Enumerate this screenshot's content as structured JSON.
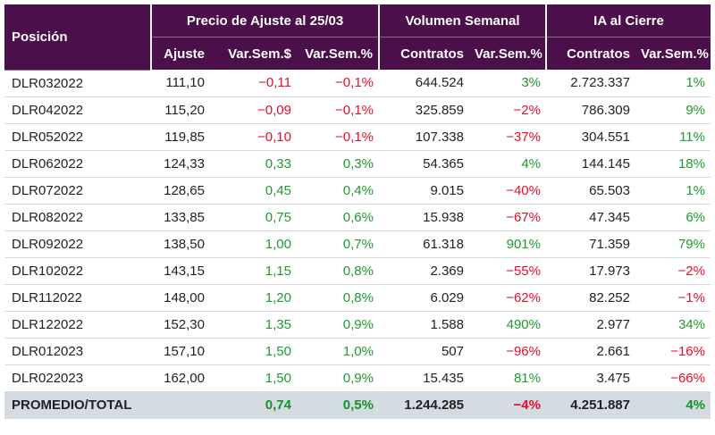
{
  "header": {
    "position_label": "Posición",
    "groups": [
      "Precio de Ajuste al 25/03",
      "Volumen Semanal",
      "IA al Cierre"
    ],
    "subcolumns": [
      "Ajuste",
      "Var.Sem.$",
      "Var.Sem.%",
      "Contratos",
      "Var.Sem.%",
      "Contratos",
      "Var.Sem.%"
    ]
  },
  "rows": [
    {
      "name": "DLR032022",
      "ajuste": "111,10",
      "var_usd": "−0,11",
      "var_pct": "−0,1%",
      "vol": "644.524",
      "vol_var": "3%",
      "ia": "2.723.337",
      "ia_var": "1%"
    },
    {
      "name": "DLR042022",
      "ajuste": "115,20",
      "var_usd": "−0,09",
      "var_pct": "−0,1%",
      "vol": "325.859",
      "vol_var": "−2%",
      "ia": "786.309",
      "ia_var": "9%"
    },
    {
      "name": "DLR052022",
      "ajuste": "119,85",
      "var_usd": "−0,10",
      "var_pct": "−0,1%",
      "vol": "107.338",
      "vol_var": "−37%",
      "ia": "304.551",
      "ia_var": "11%"
    },
    {
      "name": "DLR062022",
      "ajuste": "124,33",
      "var_usd": "0,33",
      "var_pct": "0,3%",
      "vol": "54.365",
      "vol_var": "4%",
      "ia": "144.145",
      "ia_var": "18%"
    },
    {
      "name": "DLR072022",
      "ajuste": "128,65",
      "var_usd": "0,45",
      "var_pct": "0,4%",
      "vol": "9.015",
      "vol_var": "−40%",
      "ia": "65.503",
      "ia_var": "1%"
    },
    {
      "name": "DLR082022",
      "ajuste": "133,85",
      "var_usd": "0,75",
      "var_pct": "0,6%",
      "vol": "15.938",
      "vol_var": "−67%",
      "ia": "47.345",
      "ia_var": "6%"
    },
    {
      "name": "DLR092022",
      "ajuste": "138,50",
      "var_usd": "1,00",
      "var_pct": "0,7%",
      "vol": "61.318",
      "vol_var": "901%",
      "ia": "71.359",
      "ia_var": "79%"
    },
    {
      "name": "DLR102022",
      "ajuste": "143,15",
      "var_usd": "1,15",
      "var_pct": "0,8%",
      "vol": "2.369",
      "vol_var": "−55%",
      "ia": "17.973",
      "ia_var": "−2%"
    },
    {
      "name": "DLR112022",
      "ajuste": "148,00",
      "var_usd": "1,20",
      "var_pct": "0,8%",
      "vol": "6.029",
      "vol_var": "−62%",
      "ia": "82.252",
      "ia_var": "−1%"
    },
    {
      "name": "DLR122022",
      "ajuste": "152,30",
      "var_usd": "1,35",
      "var_pct": "0,9%",
      "vol": "1.588",
      "vol_var": "490%",
      "ia": "2.977",
      "ia_var": "34%"
    },
    {
      "name": "DLR012023",
      "ajuste": "157,10",
      "var_usd": "1,50",
      "var_pct": "1,0%",
      "vol": "507",
      "vol_var": "−96%",
      "ia": "2.661",
      "ia_var": "−16%"
    },
    {
      "name": "DLR022023",
      "ajuste": "162,00",
      "var_usd": "1,50",
      "var_pct": "0,9%",
      "vol": "15.435",
      "vol_var": "81%",
      "ia": "3.475",
      "ia_var": "−66%"
    }
  ],
  "total": {
    "name": "PROMEDIO/TOTAL",
    "ajuste": "",
    "var_usd": "0,74",
    "var_pct": "0,5%",
    "vol": "1.244.285",
    "vol_var": "−4%",
    "ia": "4.251.887",
    "ia_var": "4%"
  },
  "colors": {
    "header_bg": "#4b0f4a",
    "negative": "#e0102b",
    "positive": "#1f9a2f",
    "total_bg": "#d4dbe1"
  }
}
